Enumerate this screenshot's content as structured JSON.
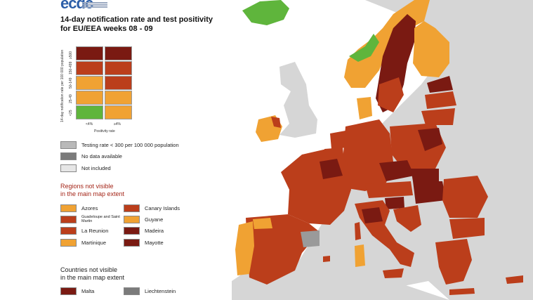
{
  "header": {
    "logo_text": "ecdc",
    "title_line1": "14-day notification rate and test positivity",
    "title_line2": "for EU/EEA weeks 08 - 09"
  },
  "matrix": {
    "y_axis_title": "14-day notification rate per 100 000 population",
    "x_axis_title": "Positivity rate",
    "x_ticks": [
      "<4%",
      "≥4%"
    ],
    "y_ticks": [
      "≥500",
      "150-499",
      "50-149",
      "25-49",
      "<25"
    ],
    "cells": [
      [
        "#7a1a12",
        "#7a1a12"
      ],
      [
        "#bb3e1b",
        "#bb3e1b"
      ],
      [
        "#f0a233",
        "#bb3e1b"
      ],
      [
        "#f0a233",
        "#f0a233"
      ],
      [
        "#5fb53c",
        "#f0a233"
      ]
    ]
  },
  "legend": {
    "items": [
      {
        "label": "Testing rate < 300 per 100 000 population",
        "color": "#b9b9b9"
      },
      {
        "label": "No data available",
        "color": "#7b7b7b"
      },
      {
        "label": "Not included",
        "color": "#e6e6e6"
      }
    ]
  },
  "regions": {
    "heading_line1": "Regions not visible",
    "heading_line2": "in the main map extent",
    "left": [
      {
        "label": "Azores",
        "color": "#f0a233"
      },
      {
        "label": "Guadeloupe and Saint Martin",
        "color": "#bb3e1b"
      },
      {
        "label": "La Reunion",
        "color": "#bb3e1b"
      },
      {
        "label": "Martinique",
        "color": "#f0a233"
      }
    ],
    "right": [
      {
        "label": "Canary Islands",
        "color": "#bb3e1b"
      },
      {
        "label": "Guyane",
        "color": "#f0a233"
      },
      {
        "label": "Madeira",
        "color": "#7a1a12"
      },
      {
        "label": "Mayotte",
        "color": "#7a1a12"
      }
    ]
  },
  "countries": {
    "heading_line1": "Countries not visible",
    "heading_line2": "in the main map extent",
    "items": [
      {
        "label": "Malta",
        "color": "#7a1a12"
      },
      {
        "label": "Liechtenstein",
        "color": "#7b7b7b"
      }
    ]
  },
  "map_colors": {
    "sea": "#ffffff",
    "non_eu": "#d6d6d6",
    "dark_red": "#7a1a12",
    "red": "#bb3e1b",
    "orange": "#f0a233",
    "green": "#5fb53c",
    "grey": "#9a9a9a"
  }
}
